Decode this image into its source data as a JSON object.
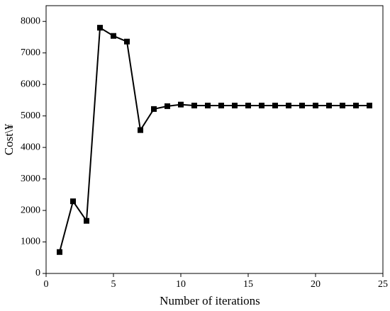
{
  "chart_data": {
    "type": "line",
    "x_label": "Number of iterations",
    "y_label": "Cost\\¥",
    "x": [
      1,
      2,
      3,
      4,
      5,
      6,
      7,
      8,
      9,
      10,
      11,
      12,
      13,
      14,
      15,
      16,
      17,
      18,
      19,
      20,
      21,
      22,
      23,
      24
    ],
    "series": [
      {
        "name": "Cost",
        "color": "#000000",
        "values": [
          680,
          2290,
          1670,
          7800,
          7540,
          7360,
          4550,
          5220,
          5310,
          5360,
          5330,
          5330,
          5330,
          5330,
          5330,
          5330,
          5330,
          5330,
          5330,
          5330,
          5330,
          5330,
          5330,
          5330
        ]
      }
    ],
    "xlim": [
      0,
      25
    ],
    "xticks": [
      0,
      5,
      10,
      15,
      20,
      25
    ],
    "ylim": [
      0,
      8500
    ],
    "yticks": [
      0,
      1000,
      2000,
      3000,
      4000,
      5000,
      6000,
      7000,
      8000
    ],
    "marker": "square"
  }
}
